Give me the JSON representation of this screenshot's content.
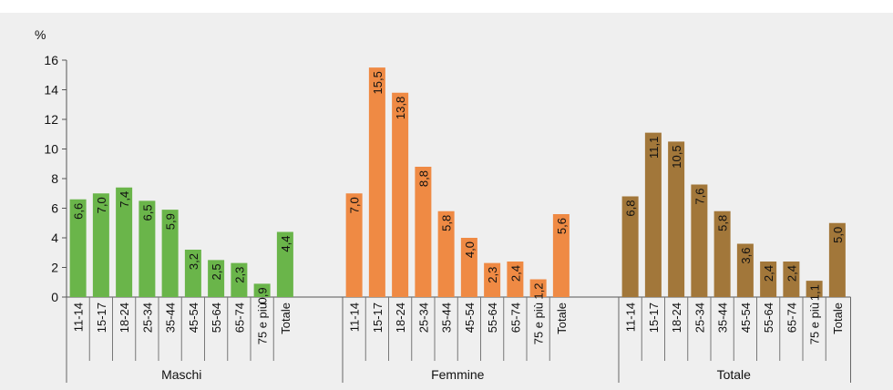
{
  "chart_data": {
    "type": "bar",
    "ylabel": "%",
    "ylim": [
      0,
      16
    ],
    "yticks": [
      "0",
      "2",
      "4",
      "6",
      "8",
      "10",
      "12",
      "14",
      "16"
    ],
    "grid": false,
    "groups": [
      {
        "name": "Maschi",
        "color": "#6ab54a",
        "categories": [
          "11-14",
          "15-17",
          "18-24",
          "25-34",
          "35-44",
          "45-54",
          "55-64",
          "65-74",
          "75 e più",
          "Totale"
        ],
        "values": [
          6.6,
          7.0,
          7.4,
          6.5,
          5.9,
          3.2,
          2.5,
          2.3,
          0.9,
          4.4
        ],
        "labels": [
          "6,6",
          "7,0",
          "7,4",
          "6,5",
          "5,9",
          "3,2",
          "2,5",
          "2,3",
          "0,9",
          "4,4"
        ]
      },
      {
        "name": "Femmine",
        "color": "#ef8a44",
        "categories": [
          "11-14",
          "15-17",
          "18-24",
          "25-34",
          "35-44",
          "45-54",
          "55-64",
          "65-74",
          "75 e più",
          "Totale"
        ],
        "values": [
          7.0,
          15.5,
          13.8,
          8.8,
          5.8,
          4.0,
          2.3,
          2.4,
          1.2,
          5.6
        ],
        "labels": [
          "7,0",
          "15,5",
          "13,8",
          "8,8",
          "5,8",
          "4,0",
          "2,3",
          "2,4",
          "1,2",
          "5,6"
        ]
      },
      {
        "name": "Totale",
        "color": "#a2773a",
        "categories": [
          "11-14",
          "15-17",
          "18-24",
          "25-34",
          "35-44",
          "45-54",
          "55-64",
          "65-74",
          "75 e più",
          "Totale"
        ],
        "values": [
          6.8,
          11.1,
          10.5,
          7.6,
          5.8,
          3.6,
          2.4,
          2.4,
          1.1,
          5.0
        ],
        "labels": [
          "6,8",
          "11,1",
          "10,5",
          "7,6",
          "5,8",
          "3,6",
          "2,4",
          "2,4",
          "1,1",
          "5,0"
        ]
      }
    ]
  }
}
